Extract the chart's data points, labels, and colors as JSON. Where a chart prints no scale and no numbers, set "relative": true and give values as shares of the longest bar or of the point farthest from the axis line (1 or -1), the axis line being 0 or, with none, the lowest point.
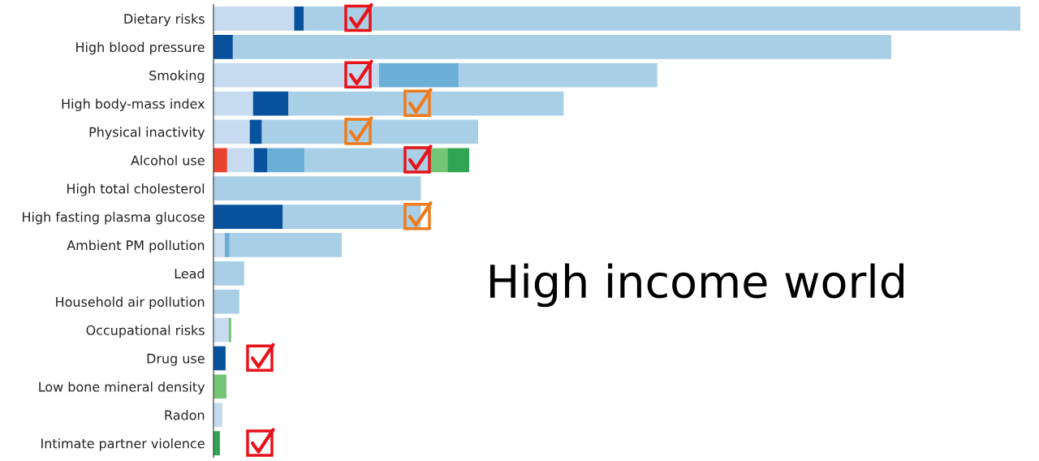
{
  "chart_data": {
    "type": "bar",
    "orientation": "horizontal",
    "stacked": true,
    "relative": true,
    "categories": [
      "Dietary risks",
      "High blood pressure",
      "Smoking",
      "High body-mass index",
      "Physical inactivity",
      "Alcohol use",
      "High total cholesterol",
      "High fasting plasma glucose",
      "Ambient PM pollution",
      "Lead",
      "Household air pollution",
      "Occupational risks",
      "Drug use",
      "Low bone mineral density",
      "Radon",
      "Intimate partner violence"
    ],
    "series": [
      {
        "color": "#e8432e",
        "values": [
          null,
          null,
          null,
          null,
          null,
          0.017,
          null,
          null,
          null,
          null,
          null,
          null,
          null,
          null,
          null,
          null
        ]
      },
      {
        "color": "#c6dbef",
        "values": [
          0.1,
          null,
          0.205,
          0.049,
          0.045,
          0.033,
          null,
          null,
          0.014,
          null,
          null,
          0.019,
          null,
          null,
          0.011,
          null
        ]
      },
      {
        "color": "#08519c",
        "values": [
          0.012,
          0.024,
          null,
          0.044,
          0.015,
          0.017,
          null,
          0.086,
          null,
          null,
          null,
          null,
          0.015,
          null,
          null,
          null
        ]
      },
      {
        "color": "#6baed6",
        "values": [
          null,
          null,
          0.099,
          null,
          null,
          0.046,
          null,
          null,
          0.006,
          null,
          null,
          null,
          null,
          null,
          null,
          null
        ]
      },
      {
        "color": "#a9cfe6",
        "values": [
          0.888,
          0.816,
          0.246,
          0.341,
          0.268,
          0.155,
          0.257,
          0.171,
          0.139,
          0.038,
          0.032,
          null,
          null,
          null,
          null,
          null
        ]
      },
      {
        "color": "#74c476",
        "values": [
          null,
          null,
          null,
          null,
          null,
          0.022,
          null,
          null,
          null,
          null,
          null,
          0.003,
          null,
          0.016,
          null,
          null
        ]
      },
      {
        "color": "#31a354",
        "values": [
          null,
          null,
          null,
          null,
          null,
          0.027,
          null,
          null,
          null,
          null,
          null,
          null,
          null,
          null,
          null,
          0.008
        ]
      }
    ],
    "annotations": [
      "High income world"
    ]
  }
}
